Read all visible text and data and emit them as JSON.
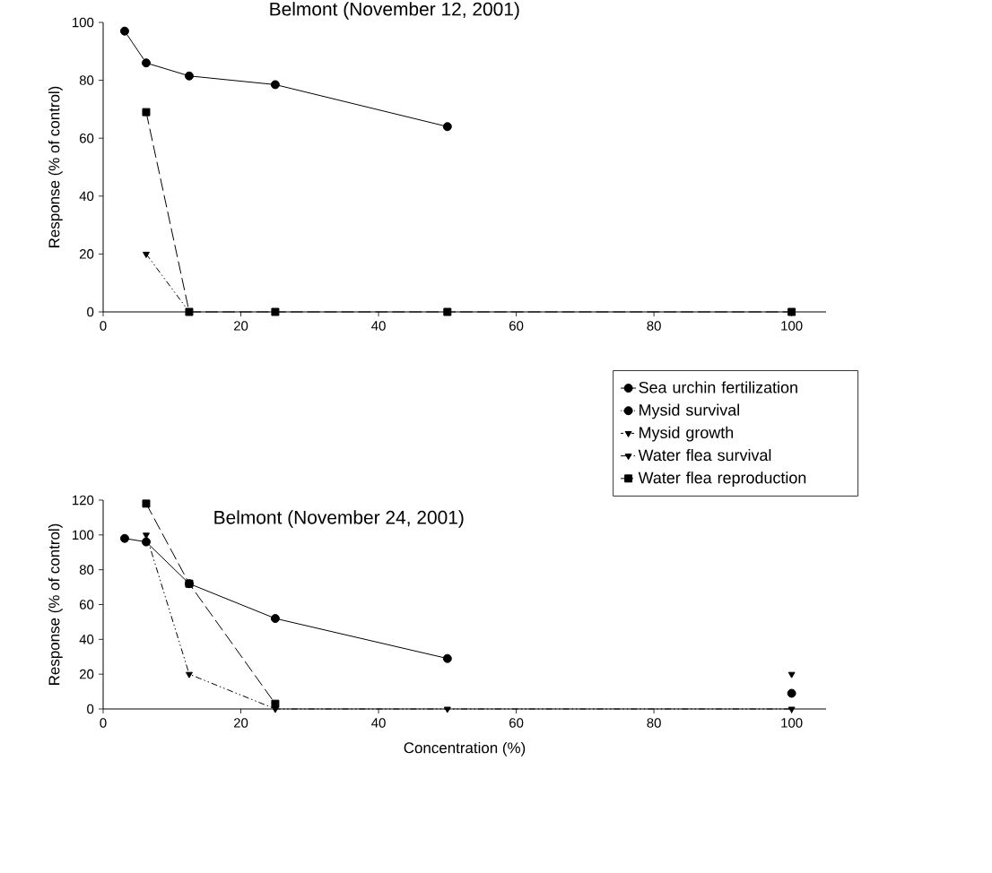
{
  "chart_data": [
    {
      "type": "line",
      "title": "Belmont (November 12, 2001)",
      "ylabel": "Response (% of control)",
      "x": [
        3.125,
        6.25,
        12.5,
        25,
        50,
        100
      ],
      "xlim": [
        0,
        105
      ],
      "ylim": [
        0,
        100
      ],
      "xticks": [
        0,
        20,
        40,
        60,
        80,
        100
      ],
      "yticks": [
        0,
        20,
        40,
        60,
        80,
        100
      ],
      "grid": false,
      "series": [
        {
          "color": "#000000",
          "marker": "circle",
          "line_style": "solid",
          "values": [
            97,
            86,
            81.5,
            78.5,
            64,
            null
          ]
        },
        {
          "color": "#000000",
          "marker": "triangle",
          "line_style": "dashdotdot",
          "values": [
            null,
            20,
            0,
            null,
            null,
            null
          ]
        },
        {
          "color": "#000000",
          "marker": "square",
          "line_style": "longdashed",
          "values": [
            null,
            69,
            0,
            0,
            0,
            0
          ]
        }
      ]
    },
    {
      "type": "line",
      "title": "Belmont (November 24, 2001)",
      "xlabel": "Concentration (%)",
      "ylabel": "Response (% of control)",
      "x": [
        3.125,
        6.25,
        12.5,
        25,
        50,
        100
      ],
      "xlim": [
        0,
        105
      ],
      "ylim": [
        0,
        120
      ],
      "xticks": [
        0,
        20,
        40,
        60,
        80,
        100
      ],
      "yticks": [
        0,
        20,
        40,
        60,
        80,
        100,
        120
      ],
      "grid": false,
      "legend": "top right",
      "series": [
        {
          "name": "Sea urchin fertilization",
          "color": "#000000",
          "marker": "circle",
          "line_style": "solid",
          "values": [
            98,
            96,
            72,
            52,
            29,
            null
          ]
        },
        {
          "name": "Mysid survival",
          "color": "#000000",
          "marker": "circle",
          "line_style": "dotted",
          "values": [
            null,
            null,
            null,
            null,
            null,
            9
          ]
        },
        {
          "name": "Mysid growth",
          "color": "#000000",
          "marker": "triangle",
          "line_style": "dashed",
          "values": [
            null,
            null,
            null,
            null,
            null,
            20
          ]
        },
        {
          "name": "Water flea survival",
          "color": "#000000",
          "marker": "triangle",
          "line_style": "dashdotdot",
          "values": [
            null,
            100,
            20,
            0,
            0,
            0
          ]
        },
        {
          "name": "Water flea reproduction",
          "color": "#000000",
          "marker": "square",
          "line_style": "longdashed",
          "values": [
            null,
            118,
            72,
            3,
            null,
            null
          ]
        }
      ]
    }
  ]
}
